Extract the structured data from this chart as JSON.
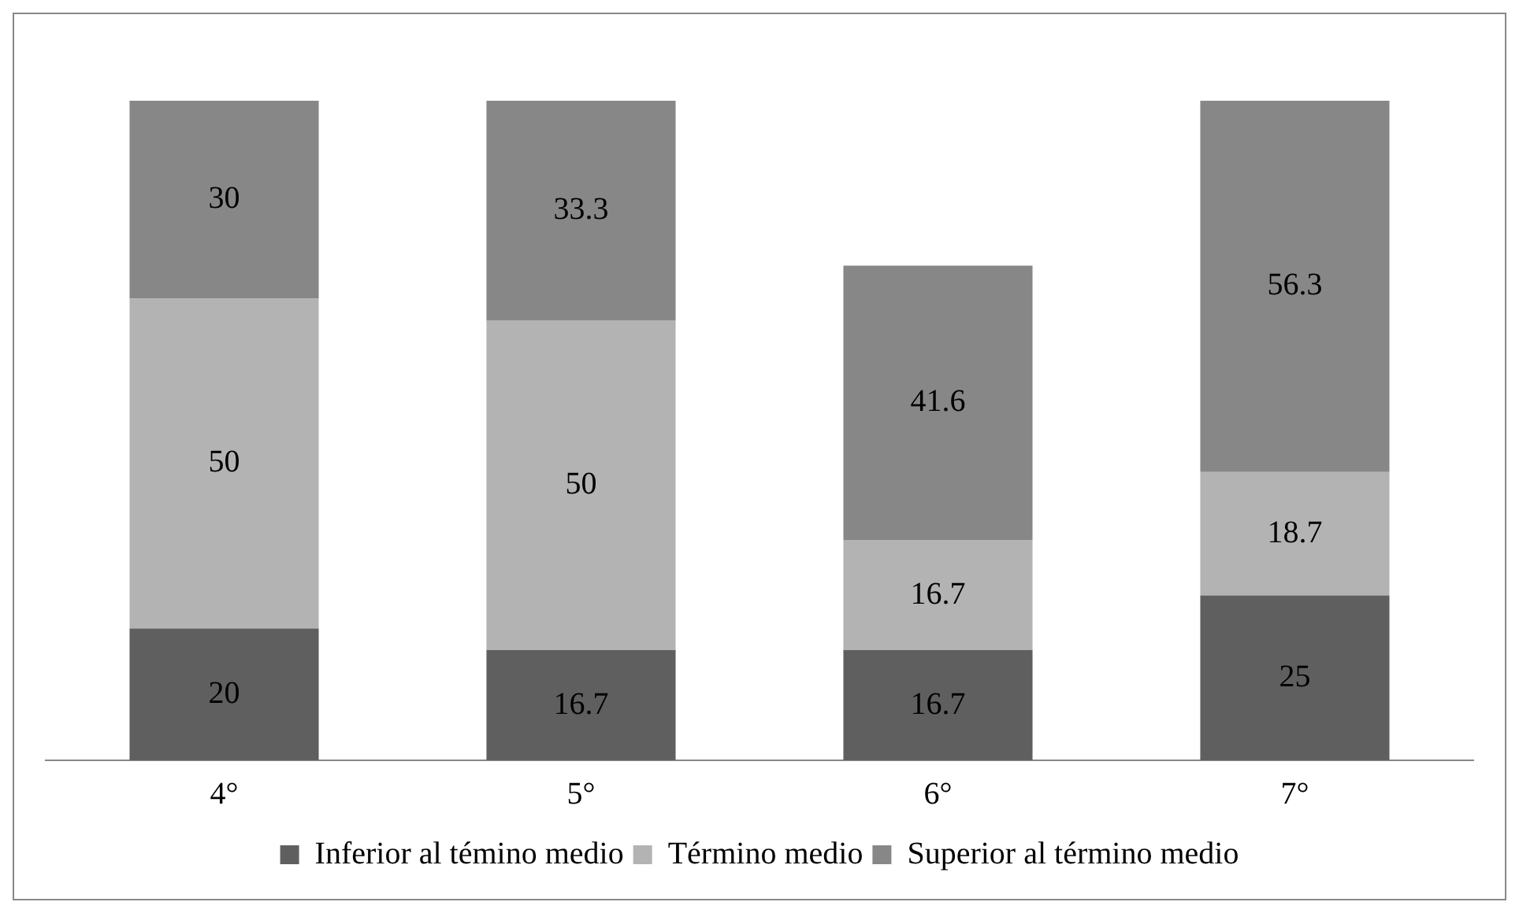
{
  "chart_data": {
    "type": "bar",
    "stacked": true,
    "categories": [
      "4°",
      "5°",
      "6°",
      "7°"
    ],
    "series": [
      {
        "name": "Inferior al témino medio",
        "color": "#5f5f5f",
        "values": [
          20,
          16.7,
          16.7,
          25
        ]
      },
      {
        "name": "Término medio",
        "color": "#b3b3b3",
        "values": [
          50,
          50,
          16.7,
          18.7
        ]
      },
      {
        "name": "Superior al término medio",
        "color": "#878787",
        "values": [
          30,
          33.3,
          41.6,
          56.3
        ]
      }
    ],
    "data_labels": true,
    "legend": "bottom",
    "grid": false,
    "tick_labels": "x"
  }
}
